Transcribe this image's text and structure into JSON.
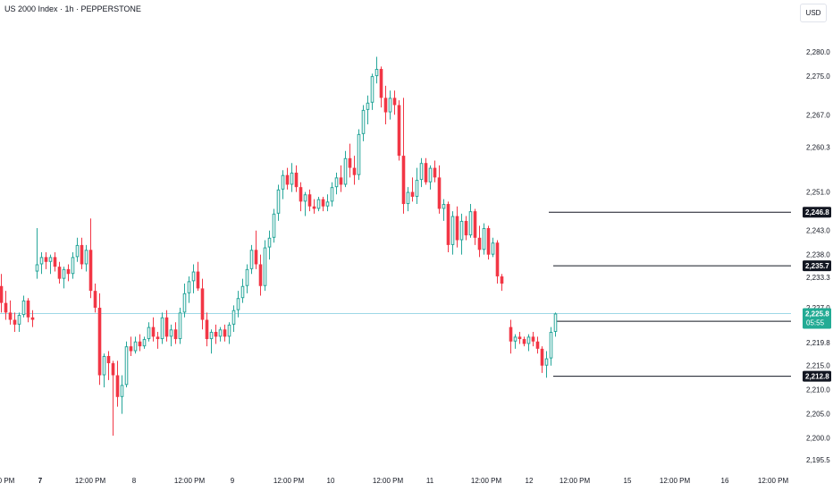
{
  "header": {
    "title": "US 2000 Index · 1h · PEPPERSTONE",
    "currency": "USD"
  },
  "chart_data": {
    "type": "candlestick",
    "ylim": [
      2194,
      2288
    ],
    "y_ticks": [
      2195.5,
      2200.0,
      2205.0,
      2210.0,
      2215.0,
      2219.8,
      2224.2,
      2227.0,
      2233.3,
      2238.0,
      2243.0,
      2246.8,
      2251.0,
      2260.3,
      2267.0,
      2275.0,
      2280.0
    ],
    "x_labels": [
      "0 PM",
      "7",
      "12:00 PM",
      "8",
      "12:00 PM",
      "9",
      "12:00 PM",
      "10",
      "12:00 PM",
      "11",
      "12:00 PM",
      "12",
      "12:00 PM",
      "15",
      "12:00 PM",
      "16",
      "12:00 PM"
    ],
    "bold_x_labels": [
      "7"
    ],
    "up_color": "#26a69a",
    "down_color": "#f23645",
    "current_line_color": "#9ed8e6",
    "current_price": {
      "price": "2,225.8",
      "countdown": "05:55",
      "value": 2225.8,
      "color": "#22ab94"
    },
    "price_levels": [
      {
        "label": "2,246.8",
        "value": 2246.8
      },
      {
        "label": "2,235.7",
        "value": 2235.7
      },
      {
        "label": "2,224.2",
        "value": 2224.2
      },
      {
        "label": "2,212.8",
        "value": 2212.8
      }
    ],
    "candles": [
      {
        "o": 2231.5,
        "h": 2234.0,
        "l": 2226.0,
        "c": 2228.0
      },
      {
        "o": 2228.0,
        "h": 2230.5,
        "l": 2224.5,
        "c": 2226.0
      },
      {
        "o": 2226.0,
        "h": 2228.5,
        "l": 2223.5,
        "c": 2224.5
      },
      {
        "o": 2224.5,
        "h": 2226.0,
        "l": 2222.0,
        "c": 2223.5
      },
      {
        "o": 2223.5,
        "h": 2226.0,
        "l": 2222.0,
        "c": 2225.5
      },
      {
        "o": 2225.5,
        "h": 2229.5,
        "l": 2225.0,
        "c": 2228.5
      },
      {
        "o": 2228.5,
        "h": 2229.0,
        "l": 2224.0,
        "c": 2225.0
      },
      {
        "o": 2225.0,
        "h": 2226.5,
        "l": 2223.0,
        "c": 2224.5
      },
      {
        "o": 2234.5,
        "h": 2243.5,
        "l": 2233.0,
        "c": 2236.0
      },
      {
        "o": 2236.0,
        "h": 2238.5,
        "l": 2234.0,
        "c": 2237.5
      },
      {
        "o": 2237.5,
        "h": 2238.5,
        "l": 2235.0,
        "c": 2236.5
      },
      {
        "o": 2236.5,
        "h": 2238.0,
        "l": 2234.0,
        "c": 2237.5
      },
      {
        "o": 2237.5,
        "h": 2238.5,
        "l": 2234.5,
        "c": 2235.5
      },
      {
        "o": 2235.5,
        "h": 2236.5,
        "l": 2232.0,
        "c": 2233.0
      },
      {
        "o": 2233.0,
        "h": 2235.5,
        "l": 2231.0,
        "c": 2235.0
      },
      {
        "o": 2235.0,
        "h": 2236.0,
        "l": 2232.5,
        "c": 2234.0
      },
      {
        "o": 2234.0,
        "h": 2238.5,
        "l": 2233.0,
        "c": 2237.5
      },
      {
        "o": 2237.5,
        "h": 2241.5,
        "l": 2236.5,
        "c": 2240.0
      },
      {
        "o": 2240.0,
        "h": 2241.5,
        "l": 2235.0,
        "c": 2236.0
      },
      {
        "o": 2236.0,
        "h": 2240.0,
        "l": 2234.5,
        "c": 2239.0
      },
      {
        "o": 2239.0,
        "h": 2245.5,
        "l": 2229.0,
        "c": 2230.5
      },
      {
        "o": 2230.5,
        "h": 2232.0,
        "l": 2226.0,
        "c": 2227.0
      },
      {
        "o": 2227.0,
        "h": 2230.0,
        "l": 2211.0,
        "c": 2213.0
      },
      {
        "o": 2213.0,
        "h": 2217.5,
        "l": 2210.5,
        "c": 2217.0
      },
      {
        "o": 2217.0,
        "h": 2218.0,
        "l": 2212.0,
        "c": 2215.5
      },
      {
        "o": 2215.5,
        "h": 2216.0,
        "l": 2200.5,
        "c": 2213.0
      },
      {
        "o": 2213.0,
        "h": 2216.0,
        "l": 2206.5,
        "c": 2208.5
      },
      {
        "o": 2208.5,
        "h": 2213.0,
        "l": 2205.0,
        "c": 2211.0
      },
      {
        "o": 2211.0,
        "h": 2220.0,
        "l": 2210.5,
        "c": 2219.0
      },
      {
        "o": 2219.0,
        "h": 2221.0,
        "l": 2217.0,
        "c": 2218.0
      },
      {
        "o": 2218.0,
        "h": 2221.0,
        "l": 2217.5,
        "c": 2220.0
      },
      {
        "o": 2220.0,
        "h": 2221.5,
        "l": 2218.0,
        "c": 2219.0
      },
      {
        "o": 2219.0,
        "h": 2221.0,
        "l": 2218.5,
        "c": 2220.5
      },
      {
        "o": 2220.5,
        "h": 2224.0,
        "l": 2220.0,
        "c": 2223.0
      },
      {
        "o": 2223.0,
        "h": 2225.0,
        "l": 2220.0,
        "c": 2221.0
      },
      {
        "o": 2221.0,
        "h": 2222.0,
        "l": 2218.5,
        "c": 2220.5
      },
      {
        "o": 2220.5,
        "h": 2226.0,
        "l": 2219.5,
        "c": 2225.0
      },
      {
        "o": 2225.0,
        "h": 2226.5,
        "l": 2220.0,
        "c": 2221.0
      },
      {
        "o": 2221.0,
        "h": 2223.5,
        "l": 2219.0,
        "c": 2222.5
      },
      {
        "o": 2222.5,
        "h": 2224.0,
        "l": 2219.5,
        "c": 2220.5
      },
      {
        "o": 2220.5,
        "h": 2227.0,
        "l": 2219.5,
        "c": 2226.0
      },
      {
        "o": 2226.0,
        "h": 2232.0,
        "l": 2225.0,
        "c": 2230.0
      },
      {
        "o": 2230.0,
        "h": 2233.5,
        "l": 2228.0,
        "c": 2232.5
      },
      {
        "o": 2232.5,
        "h": 2236.0,
        "l": 2230.0,
        "c": 2234.5
      },
      {
        "o": 2234.5,
        "h": 2236.5,
        "l": 2230.5,
        "c": 2231.0
      },
      {
        "o": 2231.0,
        "h": 2233.0,
        "l": 2222.5,
        "c": 2224.5
      },
      {
        "o": 2224.5,
        "h": 2226.0,
        "l": 2219.0,
        "c": 2220.5
      },
      {
        "o": 2220.5,
        "h": 2222.5,
        "l": 2217.5,
        "c": 2222.0
      },
      {
        "o": 2222.0,
        "h": 2223.5,
        "l": 2219.5,
        "c": 2221.0
      },
      {
        "o": 2221.0,
        "h": 2223.0,
        "l": 2220.0,
        "c": 2222.5
      },
      {
        "o": 2222.5,
        "h": 2223.5,
        "l": 2220.0,
        "c": 2221.0
      },
      {
        "o": 2221.0,
        "h": 2224.0,
        "l": 2219.5,
        "c": 2223.5
      },
      {
        "o": 2223.5,
        "h": 2227.5,
        "l": 2222.0,
        "c": 2226.5
      },
      {
        "o": 2226.5,
        "h": 2230.5,
        "l": 2225.0,
        "c": 2229.0
      },
      {
        "o": 2229.0,
        "h": 2233.0,
        "l": 2228.0,
        "c": 2231.5
      },
      {
        "o": 2231.5,
        "h": 2236.0,
        "l": 2230.0,
        "c": 2235.0
      },
      {
        "o": 2235.0,
        "h": 2240.0,
        "l": 2234.0,
        "c": 2239.0
      },
      {
        "o": 2239.0,
        "h": 2243.0,
        "l": 2235.0,
        "c": 2236.0
      },
      {
        "o": 2236.0,
        "h": 2238.0,
        "l": 2229.5,
        "c": 2231.5
      },
      {
        "o": 2231.5,
        "h": 2241.0,
        "l": 2230.5,
        "c": 2239.5
      },
      {
        "o": 2239.5,
        "h": 2243.0,
        "l": 2237.0,
        "c": 2241.5
      },
      {
        "o": 2241.5,
        "h": 2247.5,
        "l": 2240.5,
        "c": 2246.5
      },
      {
        "o": 2246.5,
        "h": 2252.5,
        "l": 2245.0,
        "c": 2251.5
      },
      {
        "o": 2251.5,
        "h": 2255.5,
        "l": 2249.5,
        "c": 2254.5
      },
      {
        "o": 2254.5,
        "h": 2256.0,
        "l": 2251.5,
        "c": 2252.5
      },
      {
        "o": 2252.5,
        "h": 2257.0,
        "l": 2251.0,
        "c": 2255.0
      },
      {
        "o": 2255.0,
        "h": 2256.5,
        "l": 2251.0,
        "c": 2252.0
      },
      {
        "o": 2252.0,
        "h": 2253.0,
        "l": 2247.0,
        "c": 2249.0
      },
      {
        "o": 2249.0,
        "h": 2251.0,
        "l": 2246.0,
        "c": 2250.5
      },
      {
        "o": 2250.5,
        "h": 2251.5,
        "l": 2247.0,
        "c": 2248.0
      },
      {
        "o": 2248.0,
        "h": 2249.5,
        "l": 2246.5,
        "c": 2247.5
      },
      {
        "o": 2247.5,
        "h": 2250.0,
        "l": 2247.0,
        "c": 2249.5
      },
      {
        "o": 2249.5,
        "h": 2250.0,
        "l": 2247.0,
        "c": 2248.0
      },
      {
        "o": 2248.0,
        "h": 2250.5,
        "l": 2247.0,
        "c": 2249.0
      },
      {
        "o": 2249.0,
        "h": 2253.0,
        "l": 2248.0,
        "c": 2252.0
      },
      {
        "o": 2252.0,
        "h": 2255.0,
        "l": 2250.5,
        "c": 2254.0
      },
      {
        "o": 2254.0,
        "h": 2256.5,
        "l": 2251.0,
        "c": 2252.5
      },
      {
        "o": 2252.5,
        "h": 2259.5,
        "l": 2252.0,
        "c": 2258.0
      },
      {
        "o": 2258.0,
        "h": 2261.0,
        "l": 2254.0,
        "c": 2256.0
      },
      {
        "o": 2256.0,
        "h": 2258.5,
        "l": 2252.5,
        "c": 2254.5
      },
      {
        "o": 2254.5,
        "h": 2264.0,
        "l": 2253.5,
        "c": 2263.0
      },
      {
        "o": 2263.0,
        "h": 2269.0,
        "l": 2261.5,
        "c": 2268.0
      },
      {
        "o": 2268.0,
        "h": 2271.0,
        "l": 2265.0,
        "c": 2269.5
      },
      {
        "o": 2269.5,
        "h": 2275.5,
        "l": 2268.0,
        "c": 2275.0
      },
      {
        "o": 2275.0,
        "h": 2279.0,
        "l": 2273.5,
        "c": 2276.5
      },
      {
        "o": 2276.5,
        "h": 2277.0,
        "l": 2268.5,
        "c": 2270.5
      },
      {
        "o": 2270.5,
        "h": 2273.0,
        "l": 2265.0,
        "c": 2267.5
      },
      {
        "o": 2267.5,
        "h": 2272.0,
        "l": 2266.0,
        "c": 2270.5
      },
      {
        "o": 2270.5,
        "h": 2272.0,
        "l": 2267.0,
        "c": 2269.0
      },
      {
        "o": 2269.0,
        "h": 2270.0,
        "l": 2257.5,
        "c": 2258.5
      },
      {
        "o": 2258.5,
        "h": 2270.5,
        "l": 2246.5,
        "c": 2248.5
      },
      {
        "o": 2248.5,
        "h": 2252.0,
        "l": 2247.0,
        "c": 2251.0
      },
      {
        "o": 2251.0,
        "h": 2254.0,
        "l": 2249.0,
        "c": 2250.0
      },
      {
        "o": 2250.0,
        "h": 2256.0,
        "l": 2248.5,
        "c": 2253.5
      },
      {
        "o": 2253.5,
        "h": 2258.0,
        "l": 2252.0,
        "c": 2257.0
      },
      {
        "o": 2257.0,
        "h": 2258.0,
        "l": 2252.5,
        "c": 2253.0
      },
      {
        "o": 2253.0,
        "h": 2256.5,
        "l": 2251.5,
        "c": 2256.0
      },
      {
        "o": 2256.0,
        "h": 2257.5,
        "l": 2253.0,
        "c": 2254.0
      },
      {
        "o": 2254.0,
        "h": 2256.5,
        "l": 2246.5,
        "c": 2247.5
      },
      {
        "o": 2247.5,
        "h": 2249.5,
        "l": 2245.0,
        "c": 2248.5
      },
      {
        "o": 2248.5,
        "h": 2249.0,
        "l": 2238.5,
        "c": 2240.0
      },
      {
        "o": 2240.0,
        "h": 2247.0,
        "l": 2238.0,
        "c": 2246.0
      },
      {
        "o": 2246.0,
        "h": 2248.0,
        "l": 2239.5,
        "c": 2241.0
      },
      {
        "o": 2241.0,
        "h": 2246.5,
        "l": 2238.0,
        "c": 2245.0
      },
      {
        "o": 2245.0,
        "h": 2246.0,
        "l": 2241.0,
        "c": 2242.0
      },
      {
        "o": 2242.0,
        "h": 2248.5,
        "l": 2241.5,
        "c": 2247.0
      },
      {
        "o": 2247.0,
        "h": 2247.5,
        "l": 2240.0,
        "c": 2241.5
      },
      {
        "o": 2241.5,
        "h": 2244.0,
        "l": 2237.5,
        "c": 2239.0
      },
      {
        "o": 2239.0,
        "h": 2244.5,
        "l": 2238.0,
        "c": 2243.5
      },
      {
        "o": 2243.5,
        "h": 2244.0,
        "l": 2237.0,
        "c": 2238.0
      },
      {
        "o": 2238.0,
        "h": 2241.5,
        "l": 2237.5,
        "c": 2240.5
      },
      {
        "o": 2240.5,
        "h": 2241.0,
        "l": 2232.0,
        "c": 2233.5
      },
      {
        "o": 2233.5,
        "h": 2234.0,
        "l": 2230.5,
        "c": 2232.0
      },
      {
        "o": null
      },
      {
        "o": 2223.0,
        "h": 2224.5,
        "l": 2217.5,
        "c": 2220.0
      },
      {
        "o": 2220.0,
        "h": 2221.5,
        "l": 2218.5,
        "c": 2221.0
      },
      {
        "o": 2221.0,
        "h": 2222.0,
        "l": 2219.5,
        "c": 2220.5
      },
      {
        "o": 2220.5,
        "h": 2221.0,
        "l": 2219.0,
        "c": 2219.5
      },
      {
        "o": 2219.5,
        "h": 2221.5,
        "l": 2218.0,
        "c": 2221.0
      },
      {
        "o": 2221.0,
        "h": 2222.0,
        "l": 2219.0,
        "c": 2220.0
      },
      {
        "o": 2220.0,
        "h": 2221.0,
        "l": 2217.5,
        "c": 2218.5
      },
      {
        "o": 2218.5,
        "h": 2219.0,
        "l": 2213.5,
        "c": 2215.0
      },
      {
        "o": 2215.0,
        "h": 2218.0,
        "l": 2212.5,
        "c": 2216.5
      },
      {
        "o": 2216.5,
        "h": 2223.0,
        "l": 2215.0,
        "c": 2222.0
      },
      {
        "o": 2222.0,
        "h": 2226.0,
        "l": 2221.0,
        "c": 2225.8
      }
    ]
  }
}
